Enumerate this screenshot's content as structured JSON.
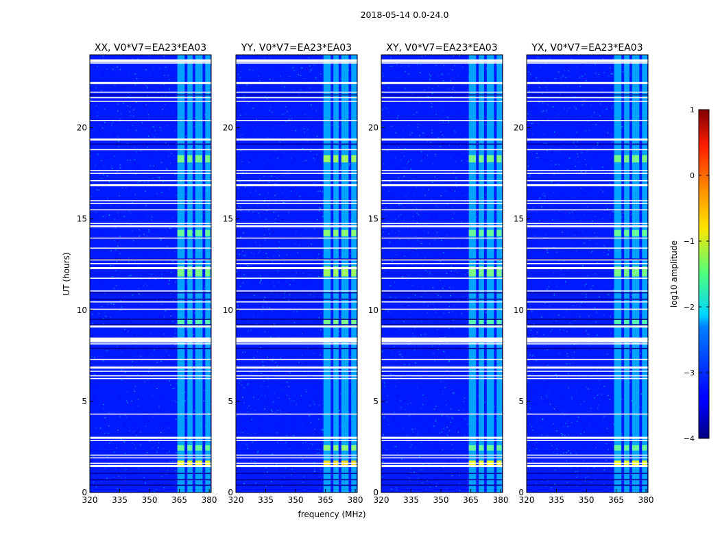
{
  "figure": {
    "suptitle": "2018-05-14 0.0-24.0",
    "xlabel": "frequency (MHz)",
    "ylabel": "UT (hours)"
  },
  "chart_data": [
    {
      "type": "heatmap",
      "title": "XX, V0*V7=EA23*EA03",
      "xlabel": "",
      "ylabel": "UT (hours)",
      "xlim": [
        320,
        381
      ],
      "ylim": [
        0,
        24
      ],
      "x_ticks": [
        320,
        335,
        350,
        365,
        380
      ],
      "y_ticks": [
        0,
        5,
        10,
        15,
        20
      ],
      "colorscale": "jet",
      "zlim": [
        -4,
        1
      ]
    },
    {
      "type": "heatmap",
      "title": "YY, V0*V7=EA23*EA03",
      "xlabel": "frequency (MHz)",
      "ylabel": "",
      "xlim": [
        320,
        381
      ],
      "ylim": [
        0,
        24
      ],
      "x_ticks": [
        320,
        335,
        350,
        365,
        380
      ],
      "y_ticks": [
        0,
        5,
        10,
        15,
        20
      ],
      "colorscale": "jet",
      "zlim": [
        -4,
        1
      ]
    },
    {
      "type": "heatmap",
      "title": "XY, V0*V7=EA23*EA03",
      "xlabel": "",
      "ylabel": "",
      "xlim": [
        320,
        381
      ],
      "ylim": [
        0,
        24
      ],
      "x_ticks": [
        320,
        335,
        350,
        365,
        380
      ],
      "y_ticks": [
        0,
        5,
        10,
        15,
        20
      ],
      "colorscale": "jet",
      "zlim": [
        -4,
        1
      ]
    },
    {
      "type": "heatmap",
      "title": "YX, V0*V7=EA23*EA03",
      "xlabel": "",
      "ylabel": "",
      "xlim": [
        320,
        381
      ],
      "ylim": [
        0,
        24
      ],
      "x_ticks": [
        320,
        335,
        350,
        365,
        380
      ],
      "y_ticks": [
        0,
        5,
        10,
        15,
        20
      ],
      "colorscale": "jet",
      "zlim": [
        -4,
        1
      ]
    }
  ],
  "colorbar": {
    "label": "log10 amplitude",
    "ticks": [
      1,
      0,
      -1,
      -2,
      -3,
      -4
    ],
    "tick_labels": [
      "1",
      "0",
      "−1",
      "−2",
      "−3",
      "−4"
    ]
  },
  "features": {
    "bright_band_mhz": [
      363,
      381
    ],
    "bright_subbands_mhz": [
      [
        364,
        368
      ],
      [
        369,
        372
      ],
      [
        373,
        377
      ],
      [
        378,
        381
      ]
    ],
    "flagged_hours": [
      1.45,
      1.6,
      1.9,
      2.05,
      2.85,
      3.0,
      4.3,
      6.25,
      6.4,
      6.65,
      6.85,
      7.3,
      8.15,
      8.25,
      8.4,
      9.1,
      10.05,
      10.45,
      11.05,
      11.75,
      12.3,
      12.55,
      12.75,
      13.4,
      13.95,
      14.6,
      14.75,
      15.5,
      15.85,
      16.0,
      16.85,
      17.1,
      17.5,
      17.65,
      18.8,
      19.35,
      20.4,
      21.45,
      21.65,
      21.95,
      22.45,
      23.55,
      23.65
    ],
    "dark_flag_hours": [
      0.4,
      0.7,
      1.05,
      7.9,
      9.2,
      9.5,
      10.6,
      10.95,
      12.8,
      19.1,
      21.8
    ],
    "bright_events": [
      {
        "t0": 1.4,
        "t1": 1.75,
        "level": -0.9
      },
      {
        "t0": 2.3,
        "t1": 2.6,
        "level": -1.6
      },
      {
        "t0": 9.2,
        "t1": 9.55,
        "level": -1.7
      },
      {
        "t0": 11.85,
        "t1": 12.4,
        "level": -1.5
      },
      {
        "t0": 14.05,
        "t1": 14.4,
        "level": -1.6
      },
      {
        "t0": 18.1,
        "t1": 18.5,
        "level": -1.5
      }
    ]
  }
}
